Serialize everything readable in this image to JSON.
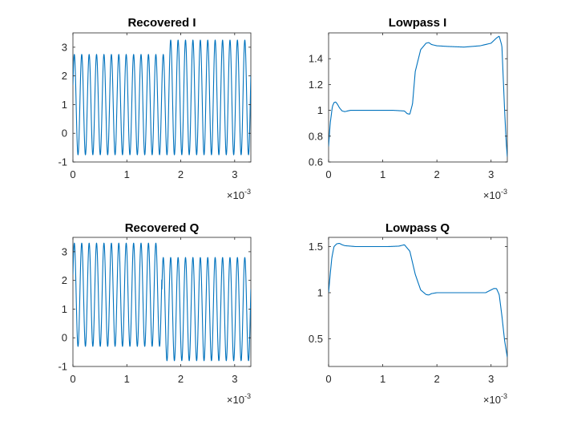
{
  "chart_data": [
    {
      "type": "line",
      "title": "Recovered I",
      "xlabel": "",
      "ylabel": "",
      "x_exponent": "×10",
      "x_exponent_power": "-3",
      "xlim": [
        0,
        0.0033
      ],
      "ylim": [
        -1,
        3.5
      ],
      "xticks": [
        0,
        1,
        2,
        3
      ],
      "yticks": [
        -1,
        0,
        1,
        2,
        3
      ],
      "grid": false,
      "color": "#0072bd",
      "series": [
        {
          "signal": "sinusoid",
          "cycles": 24,
          "segments": [
            {
              "x_start": 0,
              "x_end": 0.00175,
              "center": 1.0,
              "amplitude": 1.75
            },
            {
              "x_start": 0.00175,
              "x_end": 0.0033,
              "center": 1.25,
              "amplitude": 2.0
            }
          ]
        }
      ]
    },
    {
      "type": "line",
      "title": "Lowpass I",
      "xlabel": "",
      "ylabel": "",
      "x_exponent": "×10",
      "x_exponent_power": "-3",
      "xlim": [
        0,
        0.0033
      ],
      "ylim": [
        0.6,
        1.6
      ],
      "xticks": [
        0,
        1,
        2,
        3
      ],
      "yticks": [
        0.6,
        0.8,
        1,
        1.2,
        1.4
      ],
      "grid": false,
      "color": "#0072bd",
      "series": [
        {
          "x": [
            0,
            3e-05,
            7e-05,
            0.0001,
            0.00013,
            0.00016,
            0.0002,
            0.00025,
            0.0003,
            0.0004,
            0.0006,
            0.0009,
            0.0012,
            0.0014,
            0.00145,
            0.0015,
            0.00155,
            0.0016,
            0.0017,
            0.0018,
            0.00185,
            0.0019,
            0.002,
            0.0022,
            0.0025,
            0.0028,
            0.003,
            0.0031,
            0.00315,
            0.0032,
            0.00325,
            0.00328,
            0.0033
          ],
          "y": [
            0.72,
            0.9,
            1.03,
            1.06,
            1.065,
            1.05,
            1.02,
            0.995,
            0.99,
            1.0,
            1.0,
            1.0,
            1.0,
            0.995,
            0.975,
            0.97,
            1.05,
            1.3,
            1.47,
            1.52,
            1.525,
            1.51,
            1.5,
            1.495,
            1.49,
            1.5,
            1.52,
            1.56,
            1.575,
            1.5,
            1.0,
            0.75,
            0.64
          ]
        }
      ]
    },
    {
      "type": "line",
      "title": "Recovered Q",
      "xlabel": "",
      "ylabel": "",
      "x_exponent": "×10",
      "x_exponent_power": "-3",
      "xlim": [
        0,
        0.0033
      ],
      "ylim": [
        -1,
        3.5
      ],
      "xticks": [
        0,
        1,
        2,
        3
      ],
      "yticks": [
        -1,
        0,
        1,
        2,
        3
      ],
      "grid": false,
      "color": "#0072bd",
      "series": [
        {
          "signal": "sinusoid",
          "cycles": 24,
          "segments": [
            {
              "x_start": 0,
              "x_end": 0.00165,
              "center": 1.5,
              "amplitude": 1.8
            },
            {
              "x_start": 0.00165,
              "x_end": 0.0033,
              "center": 1.0,
              "amplitude": 1.8
            }
          ]
        }
      ]
    },
    {
      "type": "line",
      "title": "Lowpass Q",
      "xlabel": "",
      "ylabel": "",
      "x_exponent": "×10",
      "x_exponent_power": "-3",
      "xlim": [
        0,
        0.0033
      ],
      "ylim": [
        0.2,
        1.6
      ],
      "xticks": [
        0,
        1,
        2,
        3
      ],
      "yticks": [
        0.5,
        1,
        1.5
      ],
      "grid": false,
      "color": "#0072bd",
      "series": [
        {
          "x": [
            0,
            3e-05,
            6e-05,
            0.0001,
            0.00015,
            0.0002,
            0.00025,
            0.0003,
            0.0005,
            0.0008,
            0.0011,
            0.0013,
            0.0014,
            0.0015,
            0.0016,
            0.0017,
            0.0018,
            0.00185,
            0.0019,
            0.002,
            0.0025,
            0.0029,
            0.003,
            0.00305,
            0.0031,
            0.00315,
            0.0032,
            0.00325,
            0.0033
          ],
          "y": [
            1.0,
            1.2,
            1.38,
            1.5,
            1.53,
            1.535,
            1.52,
            1.51,
            1.5,
            1.5,
            1.5,
            1.505,
            1.52,
            1.45,
            1.2,
            1.03,
            0.98,
            0.975,
            0.99,
            1.0,
            1.0,
            1.0,
            1.03,
            1.045,
            1.045,
            0.98,
            0.75,
            0.48,
            0.3
          ]
        }
      ]
    }
  ]
}
